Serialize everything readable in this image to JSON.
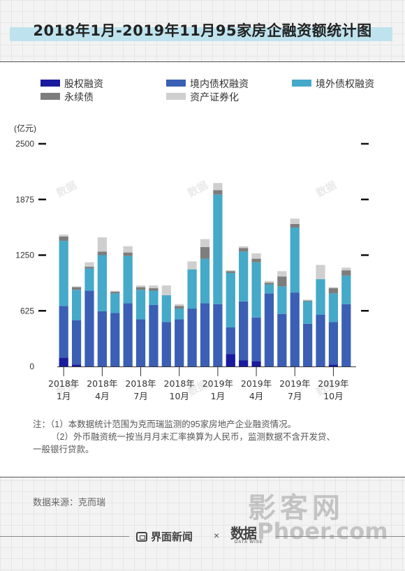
{
  "title": "2018年1月-2019年11月95家房企融资额统计图",
  "legend": [
    {
      "label": "股权融资",
      "color": "#1a1a9e"
    },
    {
      "label": "境内债权融资",
      "color": "#3a5fb4"
    },
    {
      "label": "境外债权融资",
      "color": "#45a9c9"
    },
    {
      "label": "永续债",
      "color": "#7d7d7d"
    },
    {
      "label": "资产证券化",
      "color": "#cfcfcf"
    }
  ],
  "unit_label": "(亿元)",
  "chart_data": {
    "type": "bar",
    "stacked": true,
    "categories": [
      "2018年1月",
      "2018年2月",
      "2018年3月",
      "2018年4月",
      "2018年5月",
      "2018年6月",
      "2018年7月",
      "2018年8月",
      "2018年9月",
      "2018年10月",
      "2018年11月",
      "2018年12月",
      "2019年1月",
      "2019年2月",
      "2019年3月",
      "2019年4月",
      "2019年5月",
      "2019年6月",
      "2019年7月",
      "2019年8月",
      "2019年9月",
      "2019年10月",
      "2019年11月"
    ],
    "series": [
      {
        "name": "股权融资",
        "color": "#1a1a9e",
        "values": [
          100,
          20,
          0,
          0,
          0,
          0,
          0,
          0,
          0,
          0,
          0,
          0,
          0,
          140,
          70,
          60,
          0,
          0,
          0,
          0,
          0,
          20,
          0
        ]
      },
      {
        "name": "境内债权融资",
        "color": "#3a5fb4",
        "values": [
          580,
          500,
          850,
          620,
          600,
          710,
          530,
          690,
          500,
          530,
          650,
          710,
          700,
          300,
          660,
          490,
          820,
          590,
          830,
          480,
          580,
          480,
          700
        ]
      },
      {
        "name": "境外债权融资",
        "color": "#45a9c9",
        "values": [
          730,
          340,
          250,
          630,
          220,
          530,
          330,
          160,
          300,
          120,
          440,
          500,
          1230,
          610,
          560,
          620,
          100,
          310,
          730,
          250,
          400,
          320,
          320
        ]
      },
      {
        "name": "永续债",
        "color": "#7d7d7d",
        "values": [
          50,
          30,
          20,
          40,
          20,
          40,
          30,
          30,
          0,
          30,
          0,
          130,
          50,
          20,
          40,
          40,
          20,
          110,
          40,
          10,
          0,
          60,
          60
        ]
      },
      {
        "name": "资产证券化",
        "color": "#cfcfcf",
        "values": [
          20,
          10,
          50,
          160,
          10,
          70,
          20,
          30,
          110,
          20,
          90,
          90,
          80,
          10,
          20,
          60,
          20,
          60,
          60,
          10,
          160,
          10,
          30
        ]
      }
    ],
    "ylim": [
      0,
      2500
    ],
    "yticks": [
      "0",
      "625",
      "1250",
      "1875",
      "2500"
    ],
    "xtick_labels": [
      {
        "index": 0,
        "year": "2018年",
        "month": "1月"
      },
      {
        "index": 3,
        "year": "2018年",
        "month": "4月"
      },
      {
        "index": 6,
        "year": "2018年",
        "month": "7月"
      },
      {
        "index": 9,
        "year": "2018年",
        "month": "10月"
      },
      {
        "index": 12,
        "year": "2019年",
        "month": "1月"
      },
      {
        "index": 15,
        "year": "2019年",
        "month": "4月"
      },
      {
        "index": 18,
        "year": "2019年",
        "month": "7月"
      },
      {
        "index": 21,
        "year": "2019年",
        "month": "10月"
      }
    ],
    "legend_position": "top"
  },
  "notes": [
    "注：（1）本数据统计范围为克而瑞监测的95家房地产企业融资情况。",
    "（2）外币融资统一按当月月末汇率换算为人民币，监测数据不含开发贷、",
    "一般银行贷款。"
  ],
  "source": "数据来源：克而瑞",
  "footer": {
    "brand": "界面新闻",
    "times": "×",
    "logo": "数据",
    "logo_sub": "DATA WISE"
  },
  "watermark": {
    "site": "影客网",
    "url": "Phoer.com",
    "chart": "数据"
  }
}
